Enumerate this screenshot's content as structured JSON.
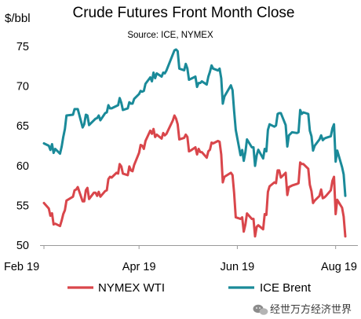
{
  "chart_data": {
    "type": "line",
    "title": "Crude Futures Front Month Close",
    "subtitle": "Source: ICE, NYMEX",
    "ylabel": "$/bbl",
    "ylim": [
      50,
      75
    ],
    "yticks": [
      50,
      55,
      60,
      65,
      70,
      75
    ],
    "x_tick_labels": [
      "Feb 19",
      "Apr 19",
      "Jun 19",
      "Aug 19"
    ],
    "x_tick_dates": [
      "2019-02-01",
      "2019-04-01",
      "2019-06-01",
      "2019-08-01"
    ],
    "xlim": [
      "2019-02-01",
      "2019-08-07"
    ],
    "grid": false,
    "legend_position": "bottom",
    "series": [
      {
        "name": "NYMEX WTI",
        "color": "#d9464b",
        "points": [
          [
            "2019-02-01",
            55.3
          ],
          [
            "2019-02-04",
            54.6
          ],
          [
            "2019-02-05",
            53.7
          ],
          [
            "2019-02-06",
            54.0
          ],
          [
            "2019-02-07",
            52.6
          ],
          [
            "2019-02-08",
            52.7
          ],
          [
            "2019-02-11",
            52.4
          ],
          [
            "2019-02-12",
            53.1
          ],
          [
            "2019-02-13",
            53.9
          ],
          [
            "2019-02-14",
            54.4
          ],
          [
            "2019-02-15",
            55.6
          ],
          [
            "2019-02-19",
            56.1
          ],
          [
            "2019-02-20",
            56.9
          ],
          [
            "2019-02-21",
            57.0
          ],
          [
            "2019-02-22",
            57.3
          ],
          [
            "2019-02-25",
            55.5
          ],
          [
            "2019-02-26",
            55.5
          ],
          [
            "2019-02-27",
            56.9
          ],
          [
            "2019-02-28",
            57.2
          ],
          [
            "2019-03-01",
            55.8
          ],
          [
            "2019-03-04",
            56.6
          ],
          [
            "2019-03-05",
            56.6
          ],
          [
            "2019-03-06",
            56.2
          ],
          [
            "2019-03-07",
            56.7
          ],
          [
            "2019-03-08",
            56.1
          ],
          [
            "2019-03-11",
            56.8
          ],
          [
            "2019-03-12",
            56.9
          ],
          [
            "2019-03-13",
            58.3
          ],
          [
            "2019-03-14",
            58.6
          ],
          [
            "2019-03-15",
            58.5
          ],
          [
            "2019-03-18",
            59.1
          ],
          [
            "2019-03-19",
            59.0
          ],
          [
            "2019-03-20",
            60.2
          ],
          [
            "2019-03-21",
            59.9
          ],
          [
            "2019-03-22",
            59.0
          ],
          [
            "2019-03-25",
            58.8
          ],
          [
            "2019-03-26",
            59.9
          ],
          [
            "2019-03-27",
            59.4
          ],
          [
            "2019-03-28",
            59.3
          ],
          [
            "2019-03-29",
            60.1
          ],
          [
            "2019-04-01",
            61.6
          ],
          [
            "2019-04-02",
            62.6
          ],
          [
            "2019-04-03",
            62.5
          ],
          [
            "2019-04-04",
            62.1
          ],
          [
            "2019-04-05",
            63.1
          ],
          [
            "2019-04-08",
            64.4
          ],
          [
            "2019-04-09",
            64.0
          ],
          [
            "2019-04-10",
            64.6
          ],
          [
            "2019-04-11",
            63.6
          ],
          [
            "2019-04-12",
            63.9
          ],
          [
            "2019-04-15",
            63.4
          ],
          [
            "2019-04-16",
            64.1
          ],
          [
            "2019-04-17",
            63.8
          ],
          [
            "2019-04-18",
            64.0
          ],
          [
            "2019-04-22",
            65.7
          ],
          [
            "2019-04-23",
            66.3
          ],
          [
            "2019-04-24",
            65.9
          ],
          [
            "2019-04-25",
            65.2
          ],
          [
            "2019-04-26",
            63.3
          ],
          [
            "2019-04-29",
            63.5
          ],
          [
            "2019-04-30",
            63.9
          ],
          [
            "2019-05-01",
            63.6
          ],
          [
            "2019-05-02",
            61.8
          ],
          [
            "2019-05-03",
            61.9
          ],
          [
            "2019-05-06",
            62.3
          ],
          [
            "2019-05-07",
            61.4
          ],
          [
            "2019-05-08",
            62.1
          ],
          [
            "2019-05-09",
            61.7
          ],
          [
            "2019-05-10",
            61.7
          ],
          [
            "2019-05-13",
            61.0
          ],
          [
            "2019-05-14",
            61.8
          ],
          [
            "2019-05-15",
            62.0
          ],
          [
            "2019-05-16",
            62.9
          ],
          [
            "2019-05-17",
            62.8
          ],
          [
            "2019-05-20",
            63.1
          ],
          [
            "2019-05-21",
            62.99
          ],
          [
            "2019-05-22",
            61.4
          ],
          [
            "2019-05-23",
            57.9
          ],
          [
            "2019-05-24",
            58.6
          ],
          [
            "2019-05-28",
            59.1
          ],
          [
            "2019-05-29",
            58.8
          ],
          [
            "2019-05-30",
            56.6
          ],
          [
            "2019-05-31",
            53.5
          ],
          [
            "2019-06-03",
            53.3
          ],
          [
            "2019-06-04",
            53.5
          ],
          [
            "2019-06-05",
            51.7
          ],
          [
            "2019-06-06",
            52.6
          ],
          [
            "2019-06-07",
            53.99
          ],
          [
            "2019-06-10",
            53.3
          ],
          [
            "2019-06-11",
            53.3
          ],
          [
            "2019-06-12",
            51.1
          ],
          [
            "2019-06-13",
            52.3
          ],
          [
            "2019-06-14",
            52.5
          ],
          [
            "2019-06-17",
            52.0
          ],
          [
            "2019-06-18",
            53.9
          ],
          [
            "2019-06-19",
            53.8
          ],
          [
            "2019-06-20",
            56.7
          ],
          [
            "2019-06-21",
            57.4
          ],
          [
            "2019-06-24",
            57.9
          ],
          [
            "2019-06-25",
            57.8
          ],
          [
            "2019-06-26",
            59.4
          ],
          [
            "2019-06-27",
            59.4
          ],
          [
            "2019-06-28",
            58.5
          ],
          [
            "2019-07-01",
            59.1
          ],
          [
            "2019-07-02",
            56.3
          ],
          [
            "2019-07-03",
            57.3
          ],
          [
            "2019-07-05",
            57.5
          ],
          [
            "2019-07-08",
            57.7
          ],
          [
            "2019-07-09",
            57.8
          ],
          [
            "2019-07-10",
            60.4
          ],
          [
            "2019-07-11",
            60.2
          ],
          [
            "2019-07-12",
            60.2
          ],
          [
            "2019-07-15",
            59.6
          ],
          [
            "2019-07-16",
            57.6
          ],
          [
            "2019-07-17",
            56.8
          ],
          [
            "2019-07-18",
            55.3
          ],
          [
            "2019-07-19",
            55.6
          ],
          [
            "2019-07-22",
            56.2
          ],
          [
            "2019-07-23",
            57.0
          ],
          [
            "2019-07-24",
            55.9
          ],
          [
            "2019-07-25",
            56.0
          ],
          [
            "2019-07-26",
            56.2
          ],
          [
            "2019-07-29",
            56.9
          ],
          [
            "2019-07-30",
            58.1
          ],
          [
            "2019-07-31",
            58.6
          ],
          [
            "2019-08-01",
            53.9
          ],
          [
            "2019-08-02",
            55.7
          ],
          [
            "2019-08-05",
            54.7
          ],
          [
            "2019-08-06",
            53.6
          ],
          [
            "2019-08-07",
            51.1
          ]
        ]
      },
      {
        "name": "ICE Brent",
        "color": "#1a8a99",
        "points": [
          [
            "2019-02-01",
            62.8
          ],
          [
            "2019-02-04",
            62.5
          ],
          [
            "2019-02-05",
            61.98
          ],
          [
            "2019-02-06",
            62.7
          ],
          [
            "2019-02-07",
            61.6
          ],
          [
            "2019-02-08",
            62.1
          ],
          [
            "2019-02-11",
            61.5
          ],
          [
            "2019-02-12",
            62.4
          ],
          [
            "2019-02-13",
            63.6
          ],
          [
            "2019-02-14",
            64.6
          ],
          [
            "2019-02-15",
            66.3
          ],
          [
            "2019-02-19",
            66.4
          ],
          [
            "2019-02-20",
            67.1
          ],
          [
            "2019-02-21",
            67.1
          ],
          [
            "2019-02-22",
            67.1
          ],
          [
            "2019-02-25",
            64.8
          ],
          [
            "2019-02-26",
            65.2
          ],
          [
            "2019-02-27",
            66.4
          ],
          [
            "2019-02-28",
            66.3
          ],
          [
            "2019-03-01",
            65.1
          ],
          [
            "2019-03-04",
            65.7
          ],
          [
            "2019-03-05",
            65.9
          ],
          [
            "2019-03-06",
            65.99
          ],
          [
            "2019-03-07",
            66.3
          ],
          [
            "2019-03-08",
            65.7
          ],
          [
            "2019-03-11",
            66.6
          ],
          [
            "2019-03-12",
            66.7
          ],
          [
            "2019-03-13",
            67.6
          ],
          [
            "2019-03-14",
            67.2
          ],
          [
            "2019-03-15",
            67.2
          ],
          [
            "2019-03-18",
            67.5
          ],
          [
            "2019-03-19",
            67.6
          ],
          [
            "2019-03-20",
            68.5
          ],
          [
            "2019-03-21",
            67.9
          ],
          [
            "2019-03-22",
            67.0
          ],
          [
            "2019-03-25",
            67.2
          ],
          [
            "2019-03-26",
            67.97
          ],
          [
            "2019-03-27",
            67.8
          ],
          [
            "2019-03-28",
            67.8
          ],
          [
            "2019-03-29",
            68.4
          ],
          [
            "2019-04-01",
            69.0
          ],
          [
            "2019-04-02",
            69.4
          ],
          [
            "2019-04-03",
            69.3
          ],
          [
            "2019-04-04",
            69.4
          ],
          [
            "2019-04-05",
            70.3
          ],
          [
            "2019-04-08",
            71.1
          ],
          [
            "2019-04-09",
            70.6
          ],
          [
            "2019-04-10",
            71.7
          ],
          [
            "2019-04-11",
            71.0
          ],
          [
            "2019-04-12",
            71.6
          ],
          [
            "2019-04-15",
            71.2
          ],
          [
            "2019-04-16",
            71.7
          ],
          [
            "2019-04-17",
            71.6
          ],
          [
            "2019-04-18",
            71.97
          ],
          [
            "2019-04-22",
            74.0
          ],
          [
            "2019-04-23",
            74.5
          ],
          [
            "2019-04-24",
            74.6
          ],
          [
            "2019-04-25",
            74.4
          ],
          [
            "2019-04-26",
            72.2
          ],
          [
            "2019-04-29",
            72.0
          ],
          [
            "2019-04-30",
            72.8
          ],
          [
            "2019-05-01",
            72.2
          ],
          [
            "2019-05-02",
            70.8
          ],
          [
            "2019-05-03",
            70.9
          ],
          [
            "2019-05-06",
            71.2
          ],
          [
            "2019-05-07",
            69.9
          ],
          [
            "2019-05-08",
            70.4
          ],
          [
            "2019-05-09",
            70.4
          ],
          [
            "2019-05-10",
            70.6
          ],
          [
            "2019-05-13",
            70.2
          ],
          [
            "2019-05-14",
            71.2
          ],
          [
            "2019-05-15",
            71.8
          ],
          [
            "2019-05-16",
            72.6
          ],
          [
            "2019-05-17",
            72.2
          ],
          [
            "2019-05-20",
            71.97
          ],
          [
            "2019-05-21",
            72.2
          ],
          [
            "2019-05-22",
            70.99
          ],
          [
            "2019-05-23",
            67.8
          ],
          [
            "2019-05-24",
            68.7
          ],
          [
            "2019-05-28",
            70.1
          ],
          [
            "2019-05-29",
            69.5
          ],
          [
            "2019-05-30",
            66.9
          ],
          [
            "2019-05-31",
            64.5
          ],
          [
            "2019-06-03",
            61.3
          ],
          [
            "2019-06-04",
            61.97
          ],
          [
            "2019-06-05",
            60.6
          ],
          [
            "2019-06-06",
            61.7
          ],
          [
            "2019-06-07",
            63.3
          ],
          [
            "2019-06-10",
            62.3
          ],
          [
            "2019-06-11",
            62.3
          ],
          [
            "2019-06-12",
            59.97
          ],
          [
            "2019-06-13",
            61.3
          ],
          [
            "2019-06-14",
            62.0
          ],
          [
            "2019-06-17",
            60.9
          ],
          [
            "2019-06-18",
            62.1
          ],
          [
            "2019-06-19",
            61.8
          ],
          [
            "2019-06-20",
            64.5
          ],
          [
            "2019-06-21",
            65.2
          ],
          [
            "2019-06-24",
            64.9
          ],
          [
            "2019-06-25",
            65.05
          ],
          [
            "2019-06-26",
            66.5
          ],
          [
            "2019-06-27",
            66.6
          ],
          [
            "2019-06-28",
            66.6
          ],
          [
            "2019-07-01",
            65.1
          ],
          [
            "2019-07-02",
            62.4
          ],
          [
            "2019-07-03",
            63.8
          ],
          [
            "2019-07-05",
            64.2
          ],
          [
            "2019-07-08",
            64.1
          ],
          [
            "2019-07-09",
            64.2
          ],
          [
            "2019-07-10",
            67.0
          ],
          [
            "2019-07-11",
            66.5
          ],
          [
            "2019-07-12",
            66.7
          ],
          [
            "2019-07-15",
            66.5
          ],
          [
            "2019-07-16",
            64.4
          ],
          [
            "2019-07-17",
            63.7
          ],
          [
            "2019-07-18",
            61.9
          ],
          [
            "2019-07-19",
            62.5
          ],
          [
            "2019-07-22",
            63.3
          ],
          [
            "2019-07-23",
            63.8
          ],
          [
            "2019-07-24",
            63.2
          ],
          [
            "2019-07-25",
            63.4
          ],
          [
            "2019-07-26",
            63.5
          ],
          [
            "2019-07-29",
            63.7
          ],
          [
            "2019-07-30",
            64.7
          ],
          [
            "2019-07-31",
            65.2
          ],
          [
            "2019-08-01",
            60.5
          ],
          [
            "2019-08-02",
            61.9
          ],
          [
            "2019-08-05",
            59.8
          ],
          [
            "2019-08-06",
            58.9
          ],
          [
            "2019-08-07",
            56.2
          ]
        ]
      }
    ]
  },
  "watermark": {
    "text": "经世万方经济世界",
    "icon": "wechat-icon"
  }
}
